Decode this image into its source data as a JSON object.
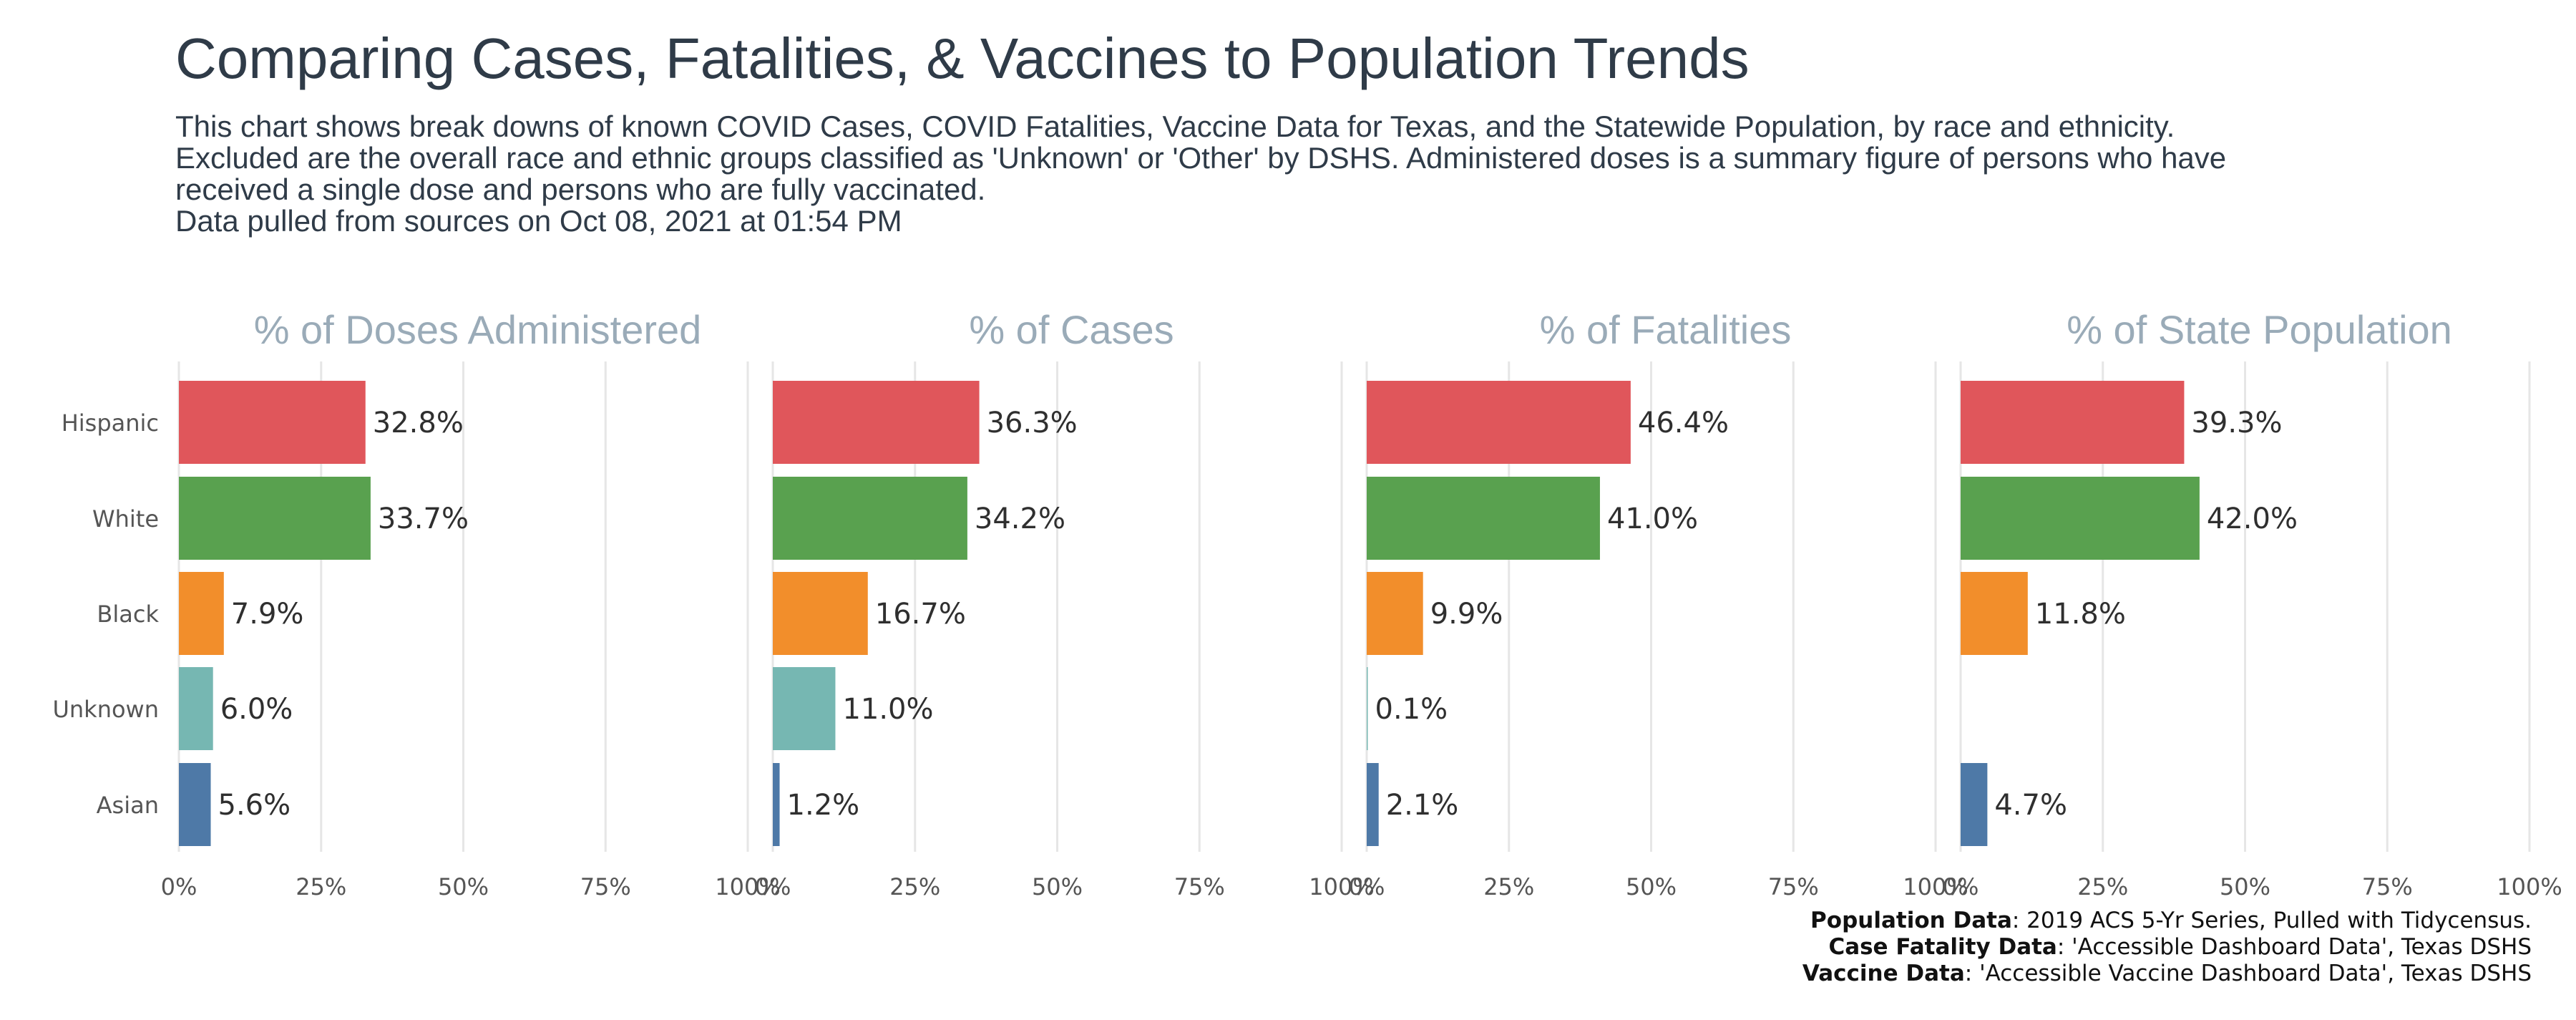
{
  "title": "Comparing Cases, Fatalities, & Vaccines to Population Trends",
  "subtitle": "This chart shows break downs of known COVID Cases, COVID Fatalities, Vaccine Data for Texas, and the Statewide Population, by race and ethnicity.\nExcluded are the overall race and ethnic groups classified as 'Unknown' or 'Other' by DSHS. Administered doses is a summary figure of persons who have\nreceived a single dose and persons who are fully vaccinated.\nData pulled from sources on Oct 08, 2021 at 01:54 PM",
  "caption": [
    {
      "bold": "Population Data",
      "text": ": 2019 ACS 5-Yr Series, Pulled with Tidycensus."
    },
    {
      "bold": "Case Fatality Data",
      "text": ": 'Accessible Dashboard Data', Texas DSHS"
    },
    {
      "bold": "Vaccine Data",
      "text": ": 'Accessible Vaccine Dashboard Data', Texas DSHS"
    }
  ],
  "colors": {
    "Hispanic": "#e0565b",
    "White": "#59a14f",
    "Black": "#f28e2b",
    "Unknown": "#76b7b2",
    "Asian": "#4e79a7",
    "panel_title": "#9aabb8",
    "grid": "#e6e6e6",
    "tick": "#555555",
    "label": "#2f2f2f"
  },
  "chart_data": {
    "type": "bar",
    "orientation": "horizontal",
    "categories": [
      "Hispanic",
      "White",
      "Black",
      "Unknown",
      "Asian"
    ],
    "xlim": [
      0,
      100
    ],
    "x_ticks": [
      "0%",
      "25%",
      "50%",
      "75%",
      "100%"
    ],
    "grid": true,
    "panels": [
      {
        "title": "% of Doses Administered",
        "values": [
          32.8,
          33.7,
          7.9,
          6.0,
          5.6
        ],
        "labels": [
          "32.8%",
          "33.7%",
          "7.9%",
          "6.0%",
          "5.6%"
        ]
      },
      {
        "title": "% of Cases",
        "values": [
          36.3,
          34.2,
          16.7,
          11.0,
          1.2
        ],
        "labels": [
          "36.3%",
          "34.2%",
          "16.7%",
          "11.0%",
          "1.2%"
        ]
      },
      {
        "title": "% of Fatalities",
        "values": [
          46.4,
          41.0,
          9.9,
          0.1,
          2.1
        ],
        "labels": [
          "46.4%",
          "41.0%",
          "9.9%",
          "0.1%",
          "2.1%"
        ]
      },
      {
        "title": "% of State Population",
        "values": [
          39.3,
          42.0,
          11.8,
          null,
          4.7
        ],
        "labels": [
          "39.3%",
          "42.0%",
          "11.8%",
          "",
          "4.7%"
        ]
      }
    ]
  }
}
